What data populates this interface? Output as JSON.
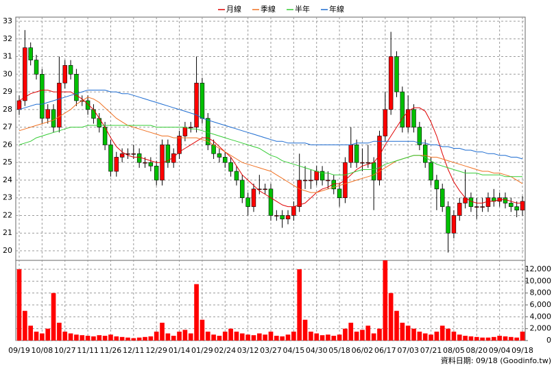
{
  "chart_data": {
    "type": "candlestick",
    "categories": [
      "09/19",
      null,
      null,
      null,
      "10/08",
      null,
      null,
      null,
      "10/27",
      null,
      null,
      null,
      "11/11",
      null,
      null,
      null,
      "11/26",
      null,
      null,
      null,
      "12/11",
      null,
      null,
      null,
      "12/29",
      null,
      null,
      null,
      "01/14",
      null,
      null,
      null,
      "01/29",
      null,
      null,
      null,
      "02/24",
      null,
      null,
      null,
      "03/12",
      null,
      null,
      null,
      "03/27",
      null,
      null,
      null,
      "04/15",
      null,
      null,
      null,
      "04/30",
      null,
      null,
      null,
      "05/18",
      null,
      null,
      null,
      "06/02",
      null,
      null,
      null,
      "06/17",
      null,
      null,
      null,
      "07/03",
      null,
      null,
      null,
      "07/21",
      null,
      null,
      null,
      "08/05",
      null,
      null,
      null,
      "08/20",
      null,
      null,
      null,
      "09/04",
      null,
      null,
      null,
      "09/18"
    ],
    "ohlc": [
      [
        28.0,
        28.8,
        27.7,
        28.5
      ],
      [
        28.5,
        32.5,
        28.2,
        31.5
      ],
      [
        31.5,
        31.8,
        30.5,
        30.8
      ],
      [
        30.8,
        31.1,
        29.7,
        30.0
      ],
      [
        30.0,
        30.3,
        27.2,
        27.5
      ],
      [
        27.5,
        28.3,
        27.2,
        28.0
      ],
      [
        28.0,
        28.3,
        26.7,
        27.0
      ],
      [
        27.0,
        31.0,
        26.7,
        29.5
      ],
      [
        29.5,
        30.8,
        29.2,
        30.5
      ],
      [
        30.5,
        30.8,
        29.7,
        30.0
      ],
      [
        30.0,
        30.3,
        28.2,
        28.5
      ],
      [
        28.5,
        28.8,
        28.2,
        28.5
      ],
      [
        28.5,
        28.8,
        27.7,
        28.0
      ],
      [
        28.0,
        28.3,
        27.2,
        27.5
      ],
      [
        27.5,
        27.8,
        26.7,
        27.0
      ],
      [
        27.0,
        27.3,
        25.7,
        26.0
      ],
      [
        26.0,
        26.3,
        24.2,
        24.5
      ],
      [
        24.5,
        25.6,
        24.2,
        25.3
      ],
      [
        25.3,
        25.8,
        25.0,
        25.5
      ],
      [
        25.5,
        25.8,
        25.2,
        25.5
      ],
      [
        25.5,
        26.0,
        25.2,
        25.5
      ],
      [
        25.5,
        25.8,
        24.7,
        25.0
      ],
      [
        25.0,
        25.3,
        24.7,
        25.0
      ],
      [
        25.0,
        25.3,
        24.5,
        24.8
      ],
      [
        24.8,
        25.1,
        23.7,
        24.0
      ],
      [
        24.0,
        26.3,
        23.7,
        26.0
      ],
      [
        26.0,
        26.3,
        24.7,
        25.0
      ],
      [
        25.0,
        25.8,
        24.7,
        25.5
      ],
      [
        25.5,
        26.8,
        25.2,
        26.5
      ],
      [
        26.5,
        27.3,
        26.2,
        27.0
      ],
      [
        27.0,
        27.3,
        26.7,
        27.0
      ],
      [
        27.0,
        31.0,
        26.7,
        29.5
      ],
      [
        29.5,
        29.8,
        27.2,
        27.5
      ],
      [
        27.5,
        27.8,
        25.7,
        26.0
      ],
      [
        26.0,
        26.3,
        25.2,
        25.5
      ],
      [
        25.5,
        25.8,
        25.0,
        25.3
      ],
      [
        25.3,
        25.6,
        24.7,
        25.0
      ],
      [
        25.0,
        25.3,
        24.2,
        24.5
      ],
      [
        24.5,
        24.8,
        23.7,
        24.0
      ],
      [
        24.0,
        24.3,
        22.7,
        23.0
      ],
      [
        23.0,
        23.3,
        22.0,
        22.5
      ],
      [
        22.5,
        23.8,
        22.2,
        23.5
      ],
      [
        23.5,
        24.3,
        23.2,
        23.5
      ],
      [
        23.5,
        23.8,
        23.2,
        23.5
      ],
      [
        23.5,
        23.8,
        21.7,
        22.0
      ],
      [
        22.0,
        22.3,
        21.7,
        22.0
      ],
      [
        22.0,
        22.3,
        21.3,
        21.8
      ],
      [
        21.8,
        22.3,
        21.5,
        22.0
      ],
      [
        22.0,
        22.8,
        21.7,
        22.5
      ],
      [
        22.5,
        25.5,
        22.2,
        24.0
      ],
      [
        24.0,
        24.8,
        23.5,
        24.0
      ],
      [
        24.0,
        24.6,
        23.5,
        24.0
      ],
      [
        24.0,
        24.8,
        23.7,
        24.5
      ],
      [
        24.5,
        24.8,
        23.7,
        24.0
      ],
      [
        24.0,
        24.5,
        23.5,
        24.0
      ],
      [
        24.0,
        24.3,
        23.2,
        23.5
      ],
      [
        23.5,
        23.8,
        22.5,
        23.0
      ],
      [
        23.0,
        25.3,
        22.7,
        25.0
      ],
      [
        25.0,
        27.0,
        24.7,
        26.0
      ],
      [
        26.0,
        26.3,
        24.7,
        25.0
      ],
      [
        25.0,
        25.8,
        24.5,
        25.0
      ],
      [
        25.0,
        26.0,
        24.7,
        25.0
      ],
      [
        25.0,
        25.3,
        22.3,
        24.0
      ],
      [
        24.0,
        26.8,
        23.7,
        26.5
      ],
      [
        26.5,
        29.0,
        26.2,
        28.0
      ],
      [
        28.0,
        32.4,
        27.7,
        31.0
      ],
      [
        31.0,
        31.3,
        28.7,
        29.0
      ],
      [
        29.0,
        29.3,
        26.7,
        27.0
      ],
      [
        27.0,
        28.8,
        26.7,
        28.0
      ],
      [
        28.0,
        28.3,
        26.7,
        27.0
      ],
      [
        27.0,
        27.3,
        25.7,
        26.0
      ],
      [
        26.0,
        26.3,
        24.7,
        25.0
      ],
      [
        25.0,
        25.3,
        23.7,
        24.0
      ],
      [
        24.0,
        24.3,
        22.3,
        23.5
      ],
      [
        23.5,
        23.8,
        22.2,
        22.5
      ],
      [
        22.5,
        22.8,
        19.9,
        21.0
      ],
      [
        21.0,
        22.3,
        20.7,
        22.0
      ],
      [
        22.0,
        23.0,
        21.7,
        22.7
      ],
      [
        22.7,
        24.6,
        22.4,
        23.0
      ],
      [
        23.0,
        23.3,
        22.2,
        22.5
      ],
      [
        22.5,
        23.0,
        21.8,
        22.5
      ],
      [
        22.5,
        23.0,
        22.2,
        22.5
      ],
      [
        22.5,
        23.3,
        22.2,
        23.0
      ],
      [
        23.0,
        23.5,
        22.5,
        22.8
      ],
      [
        22.8,
        23.3,
        22.5,
        23.0
      ],
      [
        23.0,
        23.3,
        22.4,
        22.7
      ],
      [
        22.7,
        23.0,
        22.2,
        22.5
      ],
      [
        22.5,
        22.8,
        21.9,
        22.3
      ],
      [
        22.3,
        23.1,
        22.0,
        22.8
      ]
    ],
    "up_color": "#ff0000",
    "down_color": "#00c000",
    "volume": [
      12000,
      5000,
      2500,
      1500,
      1200,
      2000,
      8000,
      3000,
      1500,
      1200,
      1000,
      900,
      800,
      700,
      900,
      800,
      1000,
      700,
      600,
      500,
      400,
      500,
      600,
      700,
      1500,
      3000,
      1200,
      800,
      1500,
      1800,
      1200,
      9500,
      3500,
      1500,
      1000,
      800,
      1500,
      2000,
      1500,
      1200,
      1000,
      900,
      1200,
      1000,
      1500,
      800,
      700,
      1000,
      1500,
      12000,
      3500,
      1500,
      1200,
      900,
      1000,
      800,
      1000,
      2000,
      3000,
      1500,
      1800,
      2500,
      1200,
      2000,
      13500,
      8000,
      5000,
      3000,
      2500,
      2000,
      1500,
      1200,
      1000,
      1500,
      2500,
      2000,
      1500,
      1000,
      800,
      700,
      600,
      500,
      500,
      600,
      800,
      700,
      600,
      500,
      1500
    ],
    "volume_color": "#ff0000",
    "series": [
      {
        "name": "月線",
        "color": "#e00000",
        "values": [
          28.5,
          28.7,
          28.9,
          29.0,
          29.1,
          29.1,
          29.0,
          29.0,
          29.0,
          29.0,
          28.8,
          28.6,
          28.3,
          28.0,
          27.5,
          27.0,
          26.4,
          25.9,
          25.6,
          25.4,
          25.3,
          25.3,
          25.2,
          25.1,
          25.0,
          25.0,
          25.1,
          25.3,
          25.6,
          25.8,
          26.0,
          26.2,
          26.4,
          26.4,
          26.2,
          25.9,
          25.6,
          25.3,
          24.8,
          24.3,
          24.0,
          23.7,
          23.4,
          23.2,
          23.0,
          22.8,
          22.6,
          22.5,
          22.5,
          22.6,
          22.7,
          23.0,
          23.3,
          23.5,
          23.6,
          23.8,
          23.8,
          24.0,
          24.3,
          24.6,
          24.8,
          24.9,
          25.0,
          25.4,
          26.0,
          26.5,
          27.0,
          27.5,
          27.9,
          28.1,
          28.1,
          27.9,
          27.3,
          26.5,
          25.5,
          24.6,
          23.9,
          23.4,
          23.0,
          22.8,
          22.7,
          22.7,
          22.8,
          22.8,
          22.9,
          22.9,
          22.8,
          22.7,
          22.7
        ]
      },
      {
        "name": "季線",
        "color": "#f07020",
        "values": [
          26.8,
          26.9,
          27.0,
          27.1,
          27.2,
          27.3,
          27.4,
          27.6,
          27.8,
          28.0,
          28.3,
          28.5,
          28.7,
          28.6,
          28.4,
          28.1,
          27.8,
          27.5,
          27.3,
          27.1,
          27.0,
          26.9,
          26.8,
          26.7,
          26.6,
          26.5,
          26.5,
          26.4,
          26.4,
          26.4,
          26.4,
          26.4,
          26.3,
          26.2,
          26.0,
          25.8,
          25.6,
          25.4,
          25.2,
          25.0,
          24.9,
          24.8,
          24.7,
          24.6,
          24.5,
          24.3,
          24.1,
          23.9,
          23.7,
          23.5,
          23.4,
          23.3,
          23.3,
          23.4,
          23.5,
          23.6,
          23.7,
          23.8,
          23.9,
          24.0,
          24.1,
          24.2,
          24.3,
          24.5,
          24.7,
          24.9,
          25.1,
          25.2,
          25.3,
          25.4,
          25.4,
          25.4,
          25.3,
          25.3,
          25.2,
          25.1,
          25.0,
          24.9,
          24.8,
          24.7,
          24.6,
          24.5,
          24.5,
          24.4,
          24.4,
          24.3,
          24.2,
          24.0,
          23.8
        ]
      },
      {
        "name": "半年",
        "color": "#33cc33",
        "values": [
          26.0,
          26.1,
          26.2,
          26.4,
          26.5,
          26.6,
          26.7,
          26.8,
          26.9,
          27.0,
          27.0,
          27.0,
          27.1,
          27.1,
          27.1,
          27.1,
          27.1,
          27.1,
          27.1,
          27.1,
          27.1,
          27.1,
          27.1,
          27.1,
          27.0,
          27.0,
          27.0,
          27.0,
          27.0,
          27.0,
          26.9,
          26.9,
          26.8,
          26.7,
          26.6,
          26.5,
          26.4,
          26.3,
          26.2,
          26.1,
          26.0,
          25.9,
          25.8,
          25.6,
          25.4,
          25.3,
          25.1,
          25.0,
          24.9,
          24.8,
          24.7,
          24.6,
          24.5,
          24.4,
          24.4,
          24.3,
          24.3,
          24.3,
          24.4,
          24.5,
          24.6,
          24.6,
          24.6,
          24.7,
          24.9,
          25.0,
          25.1,
          25.2,
          25.3,
          25.4,
          25.4,
          25.3,
          25.1,
          24.9,
          24.8,
          24.7,
          24.6,
          24.5,
          24.4,
          24.4,
          24.4,
          24.3,
          24.3,
          24.3,
          24.3,
          24.2,
          24.2,
          24.2,
          24.2
        ]
      },
      {
        "name": "年線",
        "color": "#1a6ad0",
        "values": [
          28.0,
          28.1,
          28.2,
          28.3,
          28.3,
          28.4,
          28.5,
          28.6,
          28.7,
          28.8,
          28.9,
          29.0,
          29.1,
          29.1,
          29.1,
          29.1,
          29.0,
          29.0,
          28.9,
          28.9,
          28.8,
          28.7,
          28.6,
          28.5,
          28.4,
          28.3,
          28.2,
          28.1,
          28.0,
          27.9,
          27.8,
          27.7,
          27.5,
          27.4,
          27.3,
          27.2,
          27.1,
          27.0,
          26.9,
          26.8,
          26.7,
          26.6,
          26.5,
          26.4,
          26.3,
          26.2,
          26.2,
          26.1,
          26.1,
          26.1,
          26.1,
          26.0,
          26.0,
          26.0,
          26.0,
          26.0,
          26.0,
          26.0,
          26.0,
          26.1,
          26.1,
          26.1,
          26.2,
          26.2,
          26.2,
          26.2,
          26.2,
          26.2,
          26.2,
          26.2,
          26.1,
          26.1,
          26.0,
          26.0,
          25.9,
          25.9,
          25.8,
          25.8,
          25.7,
          25.7,
          25.6,
          25.6,
          25.5,
          25.5,
          25.4,
          25.4,
          25.3,
          25.3,
          25.2
        ]
      }
    ],
    "ylim": [
      20,
      33
    ],
    "yticks": [
      20,
      21,
      22,
      23,
      24,
      25,
      26,
      27,
      28,
      29,
      30,
      31,
      32,
      33
    ],
    "y2lim": [
      0,
      13500
    ],
    "y2ticks": [
      0,
      {
        "value": 2000,
        "label": "2,000"
      },
      {
        "value": 4000,
        "label": "4,000"
      },
      {
        "value": 6000,
        "label": "6,000"
      },
      {
        "value": 8000,
        "label": "8,000"
      },
      {
        "value": 10000,
        "label": "10,000"
      },
      {
        "value": 12000,
        "label": "12,000"
      }
    ],
    "grid": true,
    "footnote": "資料日期: 09/18 (Goodinfo.tw)"
  }
}
